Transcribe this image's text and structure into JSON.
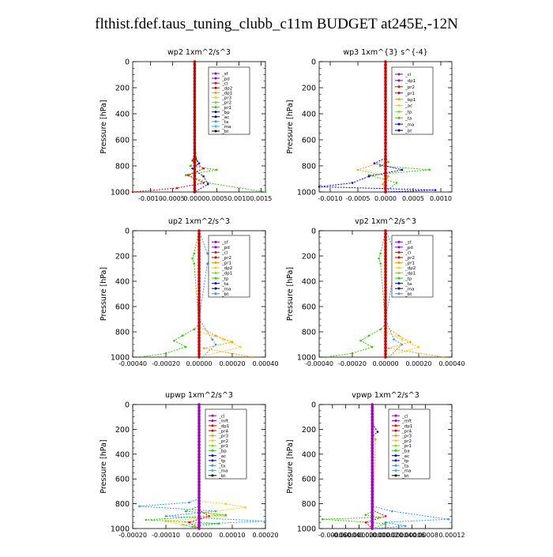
{
  "figure_title": "flthist.fdef.taus_tuning_clubb_c11m  BUDGET at245E,-12N",
  "colors": {
    "red": "#ff0000",
    "dkred": "#c80000",
    "purple": "#a000c0",
    "violet": "#8000ff",
    "orange": "#ff9900",
    "yellow": "#ffcc00",
    "green": "#33cc00",
    "ltgreen": "#66ee00",
    "blue": "#0000ff",
    "ltblue": "#3399ff",
    "cyan": "#00ccff",
    "navy": "#000080",
    "black": "#000000"
  },
  "chart_data": [
    {
      "type": "line",
      "title": "wp2   1xm^2/s^3",
      "ylabel": "Pressure [hPa]",
      "xlim": [
        -0.0014,
        0.0016
      ],
      "ylim": [
        1000,
        0
      ],
      "xticks": [
        -0.001,
        -0.0005,
        0.0,
        0.0005,
        0.001,
        0.0015
      ],
      "xtick_labels": [
        "-0.0010",
        "-0.0005",
        "0.0000",
        "0.0005",
        "0.0010",
        "0.0015"
      ],
      "yticks": [
        0,
        200,
        400,
        600,
        800,
        1000
      ],
      "legend_entries": [
        "_sf",
        "_pd",
        "_cl",
        "_dp2",
        "_dp1",
        "_pr3",
        "_pr2",
        "_pr1",
        "_bp",
        "_ac",
        "_ta",
        "_ma",
        "_bt"
      ],
      "series": [
        {
          "color_key": "green",
          "x": [
            0.0,
            2e-05,
            5e-05,
            -0.0001,
            0.0005,
            -0.0002,
            0.0003,
            0.0016
          ],
          "y": [
            0,
            700,
            760,
            800,
            830,
            870,
            930,
            1000
          ]
        },
        {
          "color_key": "blue",
          "x": [
            0.0,
            2e-05,
            0.0001,
            -5e-05,
            0.0002,
            0.0003,
            0.0
          ],
          "y": [
            0,
            740,
            780,
            820,
            880,
            940,
            1000
          ]
        },
        {
          "color_key": "red",
          "x": [
            0.0,
            0.0,
            -5e-05,
            0.0002,
            -0.00015,
            0.0002,
            -0.0004,
            -0.0014
          ],
          "y": [
            0,
            700,
            760,
            820,
            870,
            930,
            970,
            1000
          ]
        },
        {
          "color_key": "purple",
          "x": [
            0.0,
            0.0,
            0.0,
            0.0
          ],
          "y": [
            0,
            400,
            800,
            1000
          ]
        },
        {
          "color_key": "orange",
          "x": [
            0.0,
            1e-05,
            -2e-05,
            0.0
          ],
          "y": [
            0,
            800,
            900,
            1000
          ]
        }
      ]
    },
    {
      "type": "line",
      "title": "wp3   1xm^{3} s^{-4}",
      "ylabel": "Pressure [hPa]",
      "xlim": [
        -0.0012,
        0.0012
      ],
      "ylim": [
        1000,
        0
      ],
      "xticks": [
        -0.001,
        -0.0005,
        0.0,
        0.0005,
        0.001
      ],
      "xtick_labels": [
        "-0.0010",
        "-0.0005",
        "0.0000",
        "0.0005",
        "0.0010"
      ],
      "yticks": [
        0,
        200,
        400,
        600,
        800,
        1000
      ],
      "legend_entries": [
        "_cl",
        "_dp1",
        "_pr2",
        "_pr1",
        "_bp1",
        "_ac",
        "_tp",
        "_ta",
        "_ma",
        "_bt"
      ],
      "series": [
        {
          "color_key": "green",
          "x": [
            0.0,
            0.0,
            5e-05,
            -0.0001,
            0.0008,
            -0.0003,
            0.0002,
            0.0
          ],
          "y": [
            0,
            730,
            770,
            800,
            830,
            870,
            930,
            1000
          ]
        },
        {
          "color_key": "blue",
          "x": [
            0.0,
            0.0,
            -0.0002,
            0.0003,
            -0.0003,
            -0.0006,
            -0.0012,
            0.0009,
            0.0
          ],
          "y": [
            0,
            740,
            780,
            830,
            880,
            930,
            960,
            985,
            1000
          ]
        },
        {
          "color_key": "orange",
          "x": [
            0.0,
            0.0,
            -0.0005,
            5e-05,
            -5e-05,
            0.0
          ],
          "y": [
            0,
            760,
            830,
            880,
            940,
            1000
          ]
        },
        {
          "color_key": "red",
          "x": [
            0.0,
            0.0,
            0.0
          ],
          "y": [
            0,
            500,
            1000
          ]
        }
      ]
    },
    {
      "type": "line",
      "title": "up2   1xm^2/s^3",
      "ylabel": "Pressure [hPa]",
      "xlim": [
        -0.0004,
        0.0004
      ],
      "ylim": [
        1000,
        0
      ],
      "xticks": [
        -0.0004,
        -0.0002,
        0.0,
        0.0002,
        0.0004
      ],
      "xtick_labels": [
        "-0.00040",
        "-0.00020",
        "0.00000",
        "0.00020",
        "0.00040"
      ],
      "yticks": [
        0,
        200,
        400,
        600,
        800,
        1000
      ],
      "legend_entries": [
        "_sf",
        "_pd",
        "_cl",
        "_pr2",
        "_pr1",
        "_dp2",
        "_dp1",
        "_tp",
        "_ta",
        "_ma",
        "_bt"
      ],
      "series": [
        {
          "color_key": "green",
          "x": [
            0.0,
            -3e-05,
            -4e-05,
            -3e-05,
            0.0,
            -3e-05,
            -0.0001,
            -0.00015,
            -8e-05,
            -0.0002,
            -0.00036
          ],
          "y": [
            0,
            180,
            220,
            260,
            740,
            780,
            830,
            870,
            920,
            970,
            1000
          ]
        },
        {
          "color_key": "ltblue",
          "x": [
            0.0,
            5e-05,
            8e-05,
            5e-05,
            0.0,
            8e-05,
            0.0001,
            2e-05
          ],
          "y": [
            0,
            180,
            220,
            260,
            700,
            860,
            900,
            1000
          ]
        },
        {
          "color_key": "orange",
          "x": [
            0.0,
            0.0,
            0.0001,
            0.0002,
            3e-05,
            0.00032
          ],
          "y": [
            0,
            760,
            830,
            880,
            930,
            1000
          ]
        },
        {
          "color_key": "yellow",
          "x": [
            0.0,
            0.0,
            0.00015,
            0.00025,
            0.0
          ],
          "y": [
            0,
            800,
            860,
            920,
            1000
          ]
        },
        {
          "color_key": "red",
          "x": [
            0.0,
            0.0,
            0.0
          ],
          "y": [
            0,
            500,
            1000
          ]
        }
      ]
    },
    {
      "type": "line",
      "title": "vp2   1xm^2/s^3",
      "ylabel": "Pressure [hPa]",
      "xlim": [
        -0.0004,
        0.0004
      ],
      "ylim": [
        1000,
        0
      ],
      "xticks": [
        -0.0004,
        -0.0002,
        0.0,
        0.0002,
        0.0004
      ],
      "xtick_labels": [
        "-0.00040",
        "-0.00020",
        "0.00000",
        "0.00020",
        "0.00040"
      ],
      "yticks": [
        0,
        200,
        400,
        600,
        800,
        1000
      ],
      "legend_entries": [
        "_sf",
        "_pd",
        "_cl",
        "_pr2",
        "_pr1",
        "_dp2",
        "_dp1",
        "_tp",
        "_ta",
        "_ma",
        "_bt"
      ],
      "series": [
        {
          "color_key": "green",
          "x": [
            0.0,
            -3e-05,
            -4e-05,
            -3e-05,
            0.0,
            -3e-05,
            -0.0001,
            -0.00015,
            -8e-05,
            -0.0002,
            -0.00036
          ],
          "y": [
            0,
            180,
            220,
            260,
            740,
            780,
            830,
            870,
            920,
            970,
            1000
          ]
        },
        {
          "color_key": "ltblue",
          "x": [
            0.0,
            6e-05,
            0.0001,
            6e-05,
            0.0,
            5e-05,
            0.0001,
            2e-05
          ],
          "y": [
            0,
            180,
            220,
            260,
            700,
            860,
            900,
            1000
          ]
        },
        {
          "color_key": "orange",
          "x": [
            0.0,
            0.0,
            8e-05,
            0.00015,
            2e-05,
            0.00035
          ],
          "y": [
            0,
            760,
            830,
            880,
            930,
            1000
          ]
        },
        {
          "color_key": "yellow",
          "x": [
            0.0,
            0.0,
            0.0001,
            0.0002,
            0.0
          ],
          "y": [
            0,
            800,
            860,
            920,
            1000
          ]
        },
        {
          "color_key": "red",
          "x": [
            0.0,
            0.0,
            0.0
          ],
          "y": [
            0,
            500,
            1000
          ]
        }
      ]
    },
    {
      "type": "line",
      "title": "upwp   1xm^2/s^3",
      "ylabel": "Pressure [hPa]",
      "xlim": [
        -0.0002,
        0.0002
      ],
      "ylim": [
        1000,
        0
      ],
      "xticks": [
        -0.0002,
        -0.0001,
        0.0,
        0.0001,
        0.0002
      ],
      "xtick_labels": [
        "-0.00020",
        "-0.00010",
        "0.00000",
        "0.00010",
        "0.00020"
      ],
      "yticks": [
        0,
        200,
        400,
        600,
        800,
        1000
      ],
      "legend_entries": [
        "_cl",
        "_mft",
        "_dp1",
        "_pr4",
        "_pr3",
        "_pr2",
        "_pr1",
        "_bp",
        "_ac",
        "_tp",
        "_ta",
        "_ma",
        "_bt"
      ],
      "series": [
        {
          "color_key": "ltblue",
          "x": [
            0.0,
            0.0,
            -3e-05,
            -0.00018,
            5e-05,
            -0.0001,
            0.0002,
            -5e-05,
            0.0
          ],
          "y": [
            0,
            760,
            790,
            820,
            860,
            900,
            940,
            970,
            1000
          ]
        },
        {
          "color_key": "yellow",
          "x": [
            0.0,
            0.0,
            8e-05,
            0.00014,
            2e-05,
            8e-05,
            -0.0001,
            -5e-05,
            0.0
          ],
          "y": [
            0,
            780,
            800,
            830,
            870,
            900,
            940,
            970,
            1000
          ]
        },
        {
          "color_key": "green",
          "x": [
            0.0,
            0.0,
            -4e-05,
            8e-05,
            -0.00016,
            6e-05,
            -2e-05,
            0.0
          ],
          "y": [
            0,
            820,
            860,
            890,
            930,
            960,
            985,
            1000
          ]
        },
        {
          "color_key": "red",
          "x": [
            0.0,
            0.0,
            3e-05,
            -3e-05,
            0.0
          ],
          "y": [
            0,
            850,
            900,
            950,
            1000
          ]
        },
        {
          "color_key": "purple",
          "x": [
            0.0,
            0.0,
            0.0
          ],
          "y": [
            0,
            500,
            1000
          ]
        }
      ]
    },
    {
      "type": "line",
      "title": "vpwp   1xm^2/s^3",
      "ylabel": "Pressure [hPa]",
      "xlim": [
        -8e-05,
        0.00012
      ],
      "ylim": [
        1000,
        0
      ],
      "xticks": [
        -6e-05,
        -4e-05,
        -2e-05,
        0.0,
        2e-05,
        4e-05,
        6e-05,
        8e-05,
        0.00012
      ],
      "xtick_labels": [
        "-0.00006",
        "-0.00004",
        "-0.00002",
        "0.00000",
        "0.00002",
        "0.00004",
        "0.00006",
        "0.00008",
        "0.00012"
      ],
      "yticks": [
        0,
        200,
        400,
        600,
        800,
        1000
      ],
      "legend_entries": [
        "_cl",
        "_mft",
        "_dp1",
        "_pr4",
        "_pr3",
        "_pr2",
        "_pr1",
        "_ba",
        "_ac",
        "_tp",
        "_ta",
        "_ma",
        "_bt"
      ],
      "series": [
        {
          "color_key": "orange",
          "x": [
            0.0,
            0.0,
            5e-06,
            0.0,
            5e-06,
            0.0
          ],
          "y": [
            0,
            160,
            200,
            240,
            280,
            1000
          ]
        },
        {
          "color_key": "blue",
          "x": [
            0.0,
            0.0,
            8e-06,
            0.0,
            0.0
          ],
          "y": [
            0,
            150,
            220,
            260,
            1000
          ]
        },
        {
          "color_key": "green",
          "x": [
            0.0,
            0.0,
            -1e-05,
            1e-05,
            -7.5e-05,
            2e-05,
            0.0
          ],
          "y": [
            0,
            860,
            890,
            910,
            925,
            960,
            1000
          ]
        },
        {
          "color_key": "ltblue",
          "x": [
            0.0,
            0.0,
            3e-05,
            0.000115,
            2e-05,
            5e-05,
            0.0
          ],
          "y": [
            0,
            820,
            860,
            925,
            950,
            980,
            1000
          ]
        },
        {
          "color_key": "red",
          "x": [
            0.0,
            0.0,
            2e-05,
            -1e-05,
            0.0
          ],
          "y": [
            0,
            850,
            900,
            950,
            1000
          ]
        },
        {
          "color_key": "purple",
          "x": [
            0.0,
            0.0,
            0.0
          ],
          "y": [
            0,
            500,
            1000
          ]
        }
      ]
    }
  ]
}
